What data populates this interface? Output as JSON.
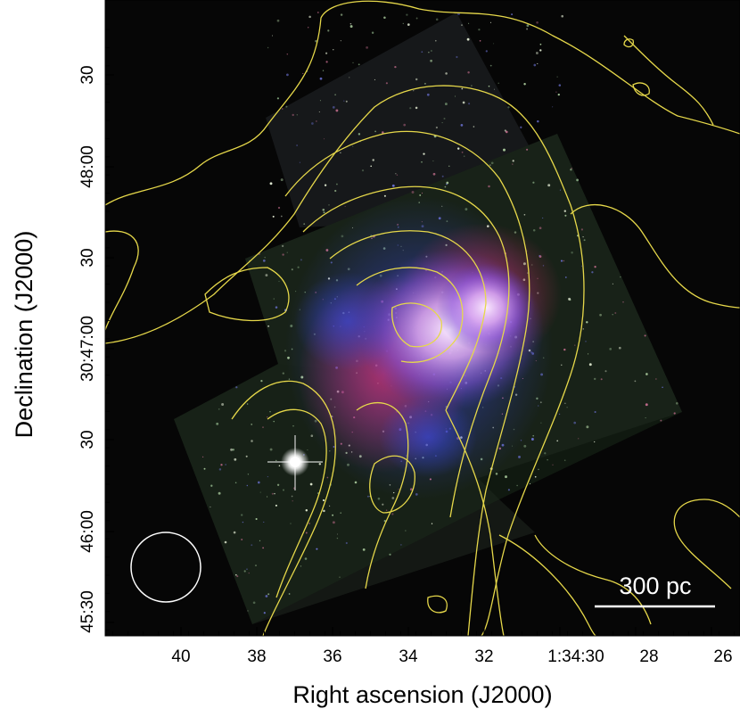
{
  "figure": {
    "x_axis_title": "Right ascension (J2000)",
    "y_axis_title": "Declination (J2000)",
    "x_tick_labels": [
      "40",
      "38",
      "36",
      "34",
      "32",
      "1:34:30",
      "28",
      "26"
    ],
    "y_tick_labels": [
      "30",
      "48:00",
      "30",
      "30:47:00",
      "30",
      "46:00",
      "45:30"
    ],
    "scale_bar_label": "300 pc",
    "colors": {
      "background": "#060606",
      "contour": "#e6d84a",
      "nebula_red": "#d0306a",
      "nebula_blue": "#4a55e0",
      "nebula_core": "#f2d0ff",
      "beam_circle": "#ffffff",
      "scale_bar": "#ffffff"
    }
  }
}
